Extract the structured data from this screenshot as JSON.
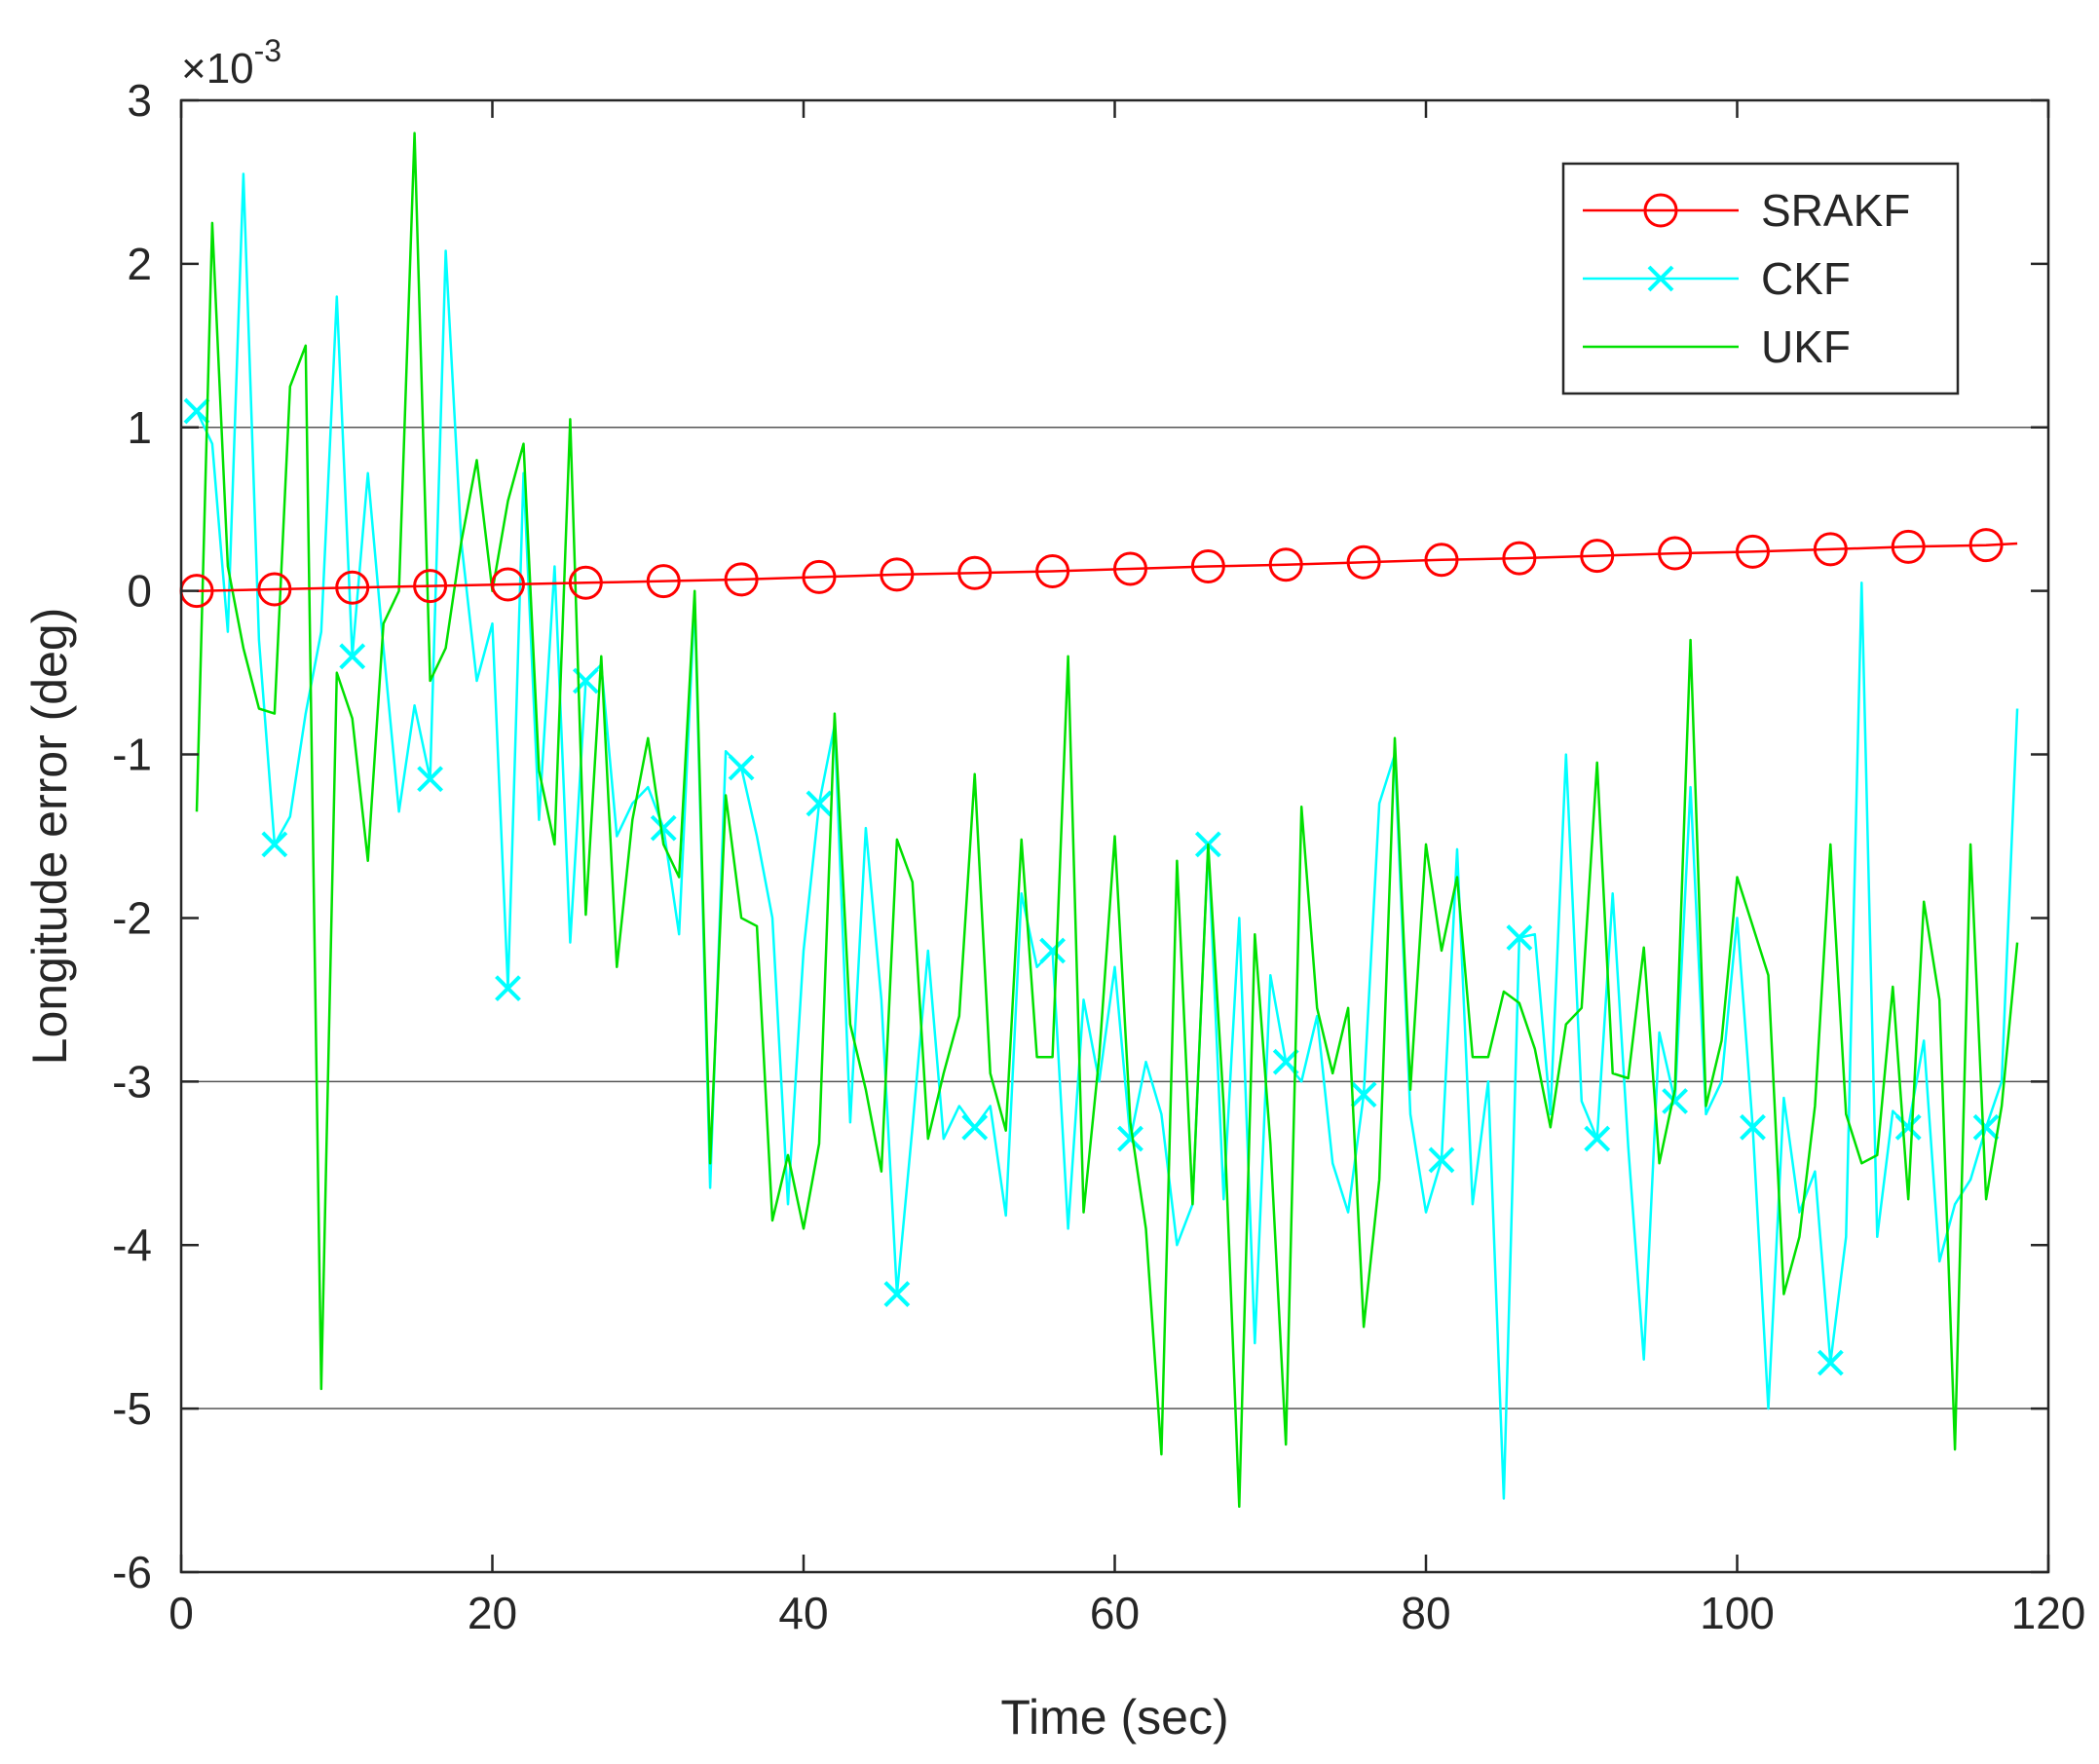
{
  "chart_data": {
    "type": "line",
    "xlabel": "Time (sec)",
    "ylabel": "Longitude error (deg)",
    "y_scale_label": "×10",
    "y_scale_exponent": "-3",
    "xlim": [
      0,
      120
    ],
    "ylim": [
      -6,
      3
    ],
    "x_ticks": [
      0,
      20,
      40,
      60,
      80,
      100,
      120
    ],
    "y_ticks": [
      -6,
      -5,
      -4,
      -3,
      -2,
      -1,
      0,
      1,
      2,
      3
    ],
    "x_tick_labels": [
      "0",
      "20",
      "40",
      "60",
      "80",
      "100",
      "120"
    ],
    "y_tick_labels": [
      "-6",
      "-5",
      "-4",
      "-3",
      "-2",
      "-1",
      "0",
      "1",
      "2",
      "3"
    ],
    "grid_y": [
      -5,
      -3,
      1
    ],
    "legend_position": "top-right",
    "series": [
      {
        "name": "SRAKF",
        "color": "#ff0000",
        "marker": "circle",
        "marker_every": 5,
        "x": [
          1,
          6,
          11,
          16,
          21,
          26,
          31,
          36,
          41,
          46,
          51,
          56,
          61,
          66,
          71,
          76,
          81,
          86,
          91,
          96,
          101,
          106,
          111,
          116,
          118
        ],
        "y": [
          0.0,
          0.01,
          0.02,
          0.03,
          0.04,
          0.05,
          0.06,
          0.07,
          0.085,
          0.1,
          0.11,
          0.12,
          0.135,
          0.15,
          0.16,
          0.175,
          0.19,
          0.2,
          0.215,
          0.23,
          0.24,
          0.255,
          0.27,
          0.28,
          0.29
        ]
      },
      {
        "name": "CKF",
        "color": "#00ffff",
        "marker": "x",
        "marker_every": 5,
        "x": [
          1,
          2,
          3,
          4,
          5,
          6,
          7,
          8,
          9,
          10,
          11,
          12,
          13,
          14,
          15,
          16,
          17,
          18,
          19,
          20,
          21,
          22,
          23,
          24,
          25,
          26,
          27,
          28,
          29,
          30,
          31,
          32,
          33,
          34,
          35,
          36,
          37,
          38,
          39,
          40,
          41,
          42,
          43,
          44,
          45,
          46,
          47,
          48,
          49,
          50,
          51,
          52,
          53,
          54,
          55,
          56,
          57,
          58,
          59,
          60,
          61,
          62,
          63,
          64,
          65,
          66,
          67,
          68,
          69,
          70,
          71,
          72,
          73,
          74,
          75,
          76,
          77,
          78,
          79,
          80,
          81,
          82,
          83,
          84,
          85,
          86,
          87,
          88,
          89,
          90,
          91,
          92,
          93,
          94,
          95,
          96,
          97,
          98,
          99,
          100,
          101,
          102,
          103,
          104,
          105,
          106,
          107,
          108,
          109,
          110,
          111,
          112,
          113,
          114,
          115,
          116,
          117,
          118
        ],
        "y": [
          1.1,
          0.9,
          -0.25,
          2.55,
          -0.3,
          -1.55,
          -1.38,
          -0.75,
          -0.25,
          1.8,
          -0.4,
          0.72,
          -0.35,
          -1.35,
          -0.7,
          -1.15,
          2.08,
          0.3,
          -0.55,
          -0.2,
          -2.43,
          0.72,
          -1.4,
          0.15,
          -2.15,
          -0.55,
          -0.45,
          -1.5,
          -1.3,
          -1.2,
          -1.45,
          -2.1,
          -0.05,
          -3.65,
          -0.98,
          -1.08,
          -1.5,
          -2.0,
          -3.75,
          -2.2,
          -1.3,
          -0.82,
          -3.25,
          -1.45,
          -2.5,
          -4.3,
          -3.28,
          -2.2,
          -3.35,
          -3.15,
          -3.28,
          -3.15,
          -3.82,
          -1.85,
          -2.3,
          -2.2,
          -3.9,
          -2.5,
          -3.0,
          -2.3,
          -3.35,
          -2.88,
          -3.2,
          -4.0,
          -3.75,
          -1.55,
          -3.72,
          -2.0,
          -4.6,
          -2.35,
          -2.88,
          -3.0,
          -2.6,
          -3.5,
          -3.8,
          -3.08,
          -1.3,
          -1.0,
          -3.2,
          -3.8,
          -3.48,
          -1.58,
          -3.75,
          -3.0,
          -5.55,
          -2.12,
          -2.1,
          -3.2,
          -1.0,
          -3.12,
          -3.35,
          -1.85,
          -3.4,
          -4.7,
          -2.7,
          -3.12,
          -1.2,
          -3.2,
          -3.0,
          -2.0,
          -3.28,
          -5.0,
          -3.1,
          -3.8,
          -3.55,
          -4.72,
          -3.95,
          0.05,
          -3.95,
          -3.18,
          -3.28,
          -2.75,
          -4.1,
          -3.75,
          -3.6,
          -3.28,
          -3.0,
          -0.72
        ]
      },
      {
        "name": "UKF",
        "color": "#00e000",
        "marker": "none",
        "x": [
          1,
          2,
          3,
          4,
          5,
          6,
          7,
          8,
          9,
          10,
          11,
          12,
          13,
          14,
          15,
          16,
          17,
          18,
          19,
          20,
          21,
          22,
          23,
          24,
          25,
          26,
          27,
          28,
          29,
          30,
          31,
          32,
          33,
          34,
          35,
          36,
          37,
          38,
          39,
          40,
          41,
          42,
          43,
          44,
          45,
          46,
          47,
          48,
          49,
          50,
          51,
          52,
          53,
          54,
          55,
          56,
          57,
          58,
          59,
          60,
          61,
          62,
          63,
          64,
          65,
          66,
          67,
          68,
          69,
          70,
          71,
          72,
          73,
          74,
          75,
          76,
          77,
          78,
          79,
          80,
          81,
          82,
          83,
          84,
          85,
          86,
          87,
          88,
          89,
          90,
          91,
          92,
          93,
          94,
          95,
          96,
          97,
          98,
          99,
          100,
          101,
          102,
          103,
          104,
          105,
          106,
          107,
          108,
          109,
          110,
          111,
          112,
          113,
          114,
          115,
          116,
          117,
          118
        ],
        "y": [
          -1.35,
          2.25,
          0.15,
          -0.35,
          -0.72,
          -0.75,
          1.25,
          1.5,
          -4.88,
          -0.5,
          -0.78,
          -1.65,
          -0.2,
          0.0,
          2.8,
          -0.55,
          -0.35,
          0.3,
          0.8,
          0.0,
          0.55,
          0.9,
          -1.1,
          -1.55,
          1.05,
          -1.98,
          -0.4,
          -2.3,
          -1.4,
          -0.9,
          -1.55,
          -1.75,
          0.0,
          -3.5,
          -1.25,
          -2.0,
          -2.05,
          -3.85,
          -3.45,
          -3.9,
          -3.38,
          -0.75,
          -2.65,
          -3.05,
          -3.55,
          -1.52,
          -1.78,
          -3.35,
          -2.95,
          -2.6,
          -1.12,
          -2.95,
          -3.3,
          -1.52,
          -2.85,
          -2.85,
          -0.4,
          -3.8,
          -2.85,
          -1.5,
          -3.25,
          -3.9,
          -5.28,
          -1.65,
          -3.75,
          -1.55,
          -3.15,
          -5.6,
          -2.1,
          -3.38,
          -5.22,
          -1.32,
          -2.55,
          -2.95,
          -2.55,
          -4.5,
          -3.6,
          -0.9,
          -3.05,
          -1.55,
          -2.2,
          -1.75,
          -2.85,
          -2.85,
          -2.45,
          -2.52,
          -2.8,
          -3.28,
          -2.65,
          -2.55,
          -1.05,
          -2.95,
          -2.98,
          -2.18,
          -3.5,
          -3.05,
          -0.3,
          -3.15,
          -2.75,
          -1.75,
          -2.05,
          -2.35,
          -4.3,
          -3.95,
          -3.15,
          -1.55,
          -3.2,
          -3.5,
          -3.45,
          -2.42,
          -3.72,
          -1.9,
          -2.5,
          -5.25,
          -1.55,
          -3.72,
          -3.15,
          -2.15
        ]
      }
    ]
  }
}
